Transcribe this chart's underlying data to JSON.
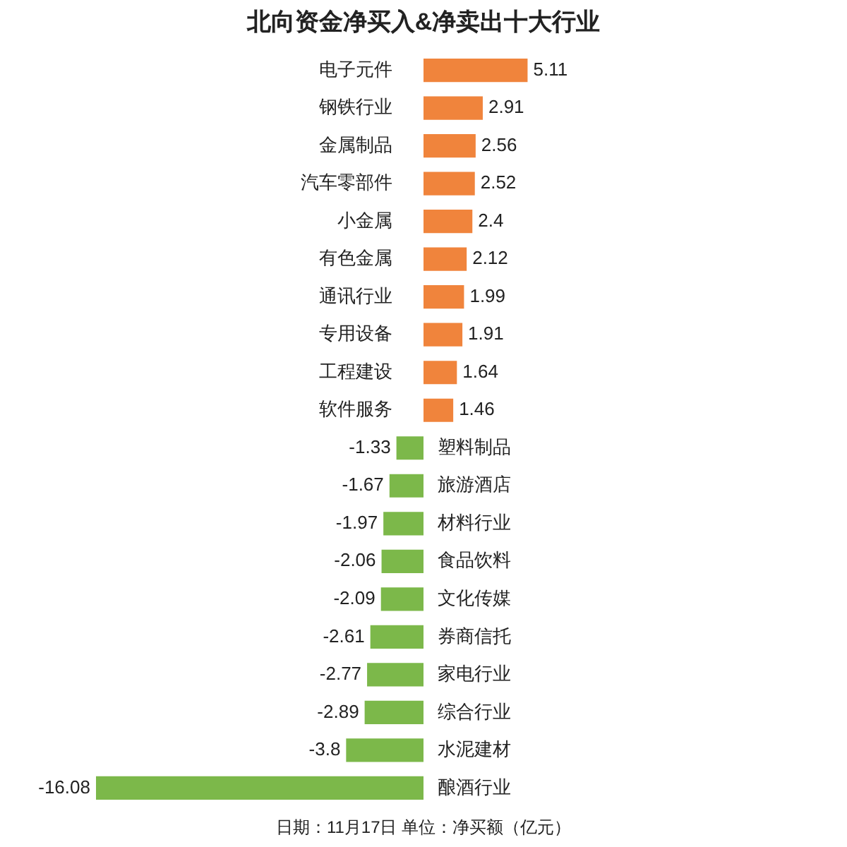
{
  "chart_data": {
    "type": "bar",
    "orientation": "horizontal",
    "title": "北向资金净买入&净卖出十大行业",
    "categories": [
      "电子元件",
      "钢铁行业",
      "金属制品",
      "汽车零部件",
      "小金属",
      "有色金属",
      "通讯行业",
      "专用设备",
      "工程建设",
      "软件服务",
      "塑料制品",
      "旅游酒店",
      "材料行业",
      "食品饮料",
      "文化传媒",
      "券商信托",
      "家电行业",
      "综合行业",
      "水泥建材",
      "酿酒行业"
    ],
    "values": [
      5.11,
      2.91,
      2.56,
      2.52,
      2.4,
      2.12,
      1.99,
      1.91,
      1.64,
      1.46,
      -1.33,
      -1.67,
      -1.97,
      -2.06,
      -2.09,
      -2.61,
      -2.77,
      -2.89,
      -3.8,
      -16.08
    ],
    "colors": [
      "#f0843c",
      "#f0843c",
      "#f0843c",
      "#f0843c",
      "#f0843c",
      "#f0843c",
      "#f0843c",
      "#f0843c",
      "#f0843c",
      "#f0843c",
      "#7cb84a",
      "#7cb84a",
      "#7cb84a",
      "#7cb84a",
      "#7cb84a",
      "#7cb84a",
      "#7cb84a",
      "#7cb84a",
      "#7cb84a",
      "#7cb84a"
    ],
    "data_labels": true,
    "annotations": [
      "日期：11月17日 单位：净买额（亿元）"
    ]
  }
}
